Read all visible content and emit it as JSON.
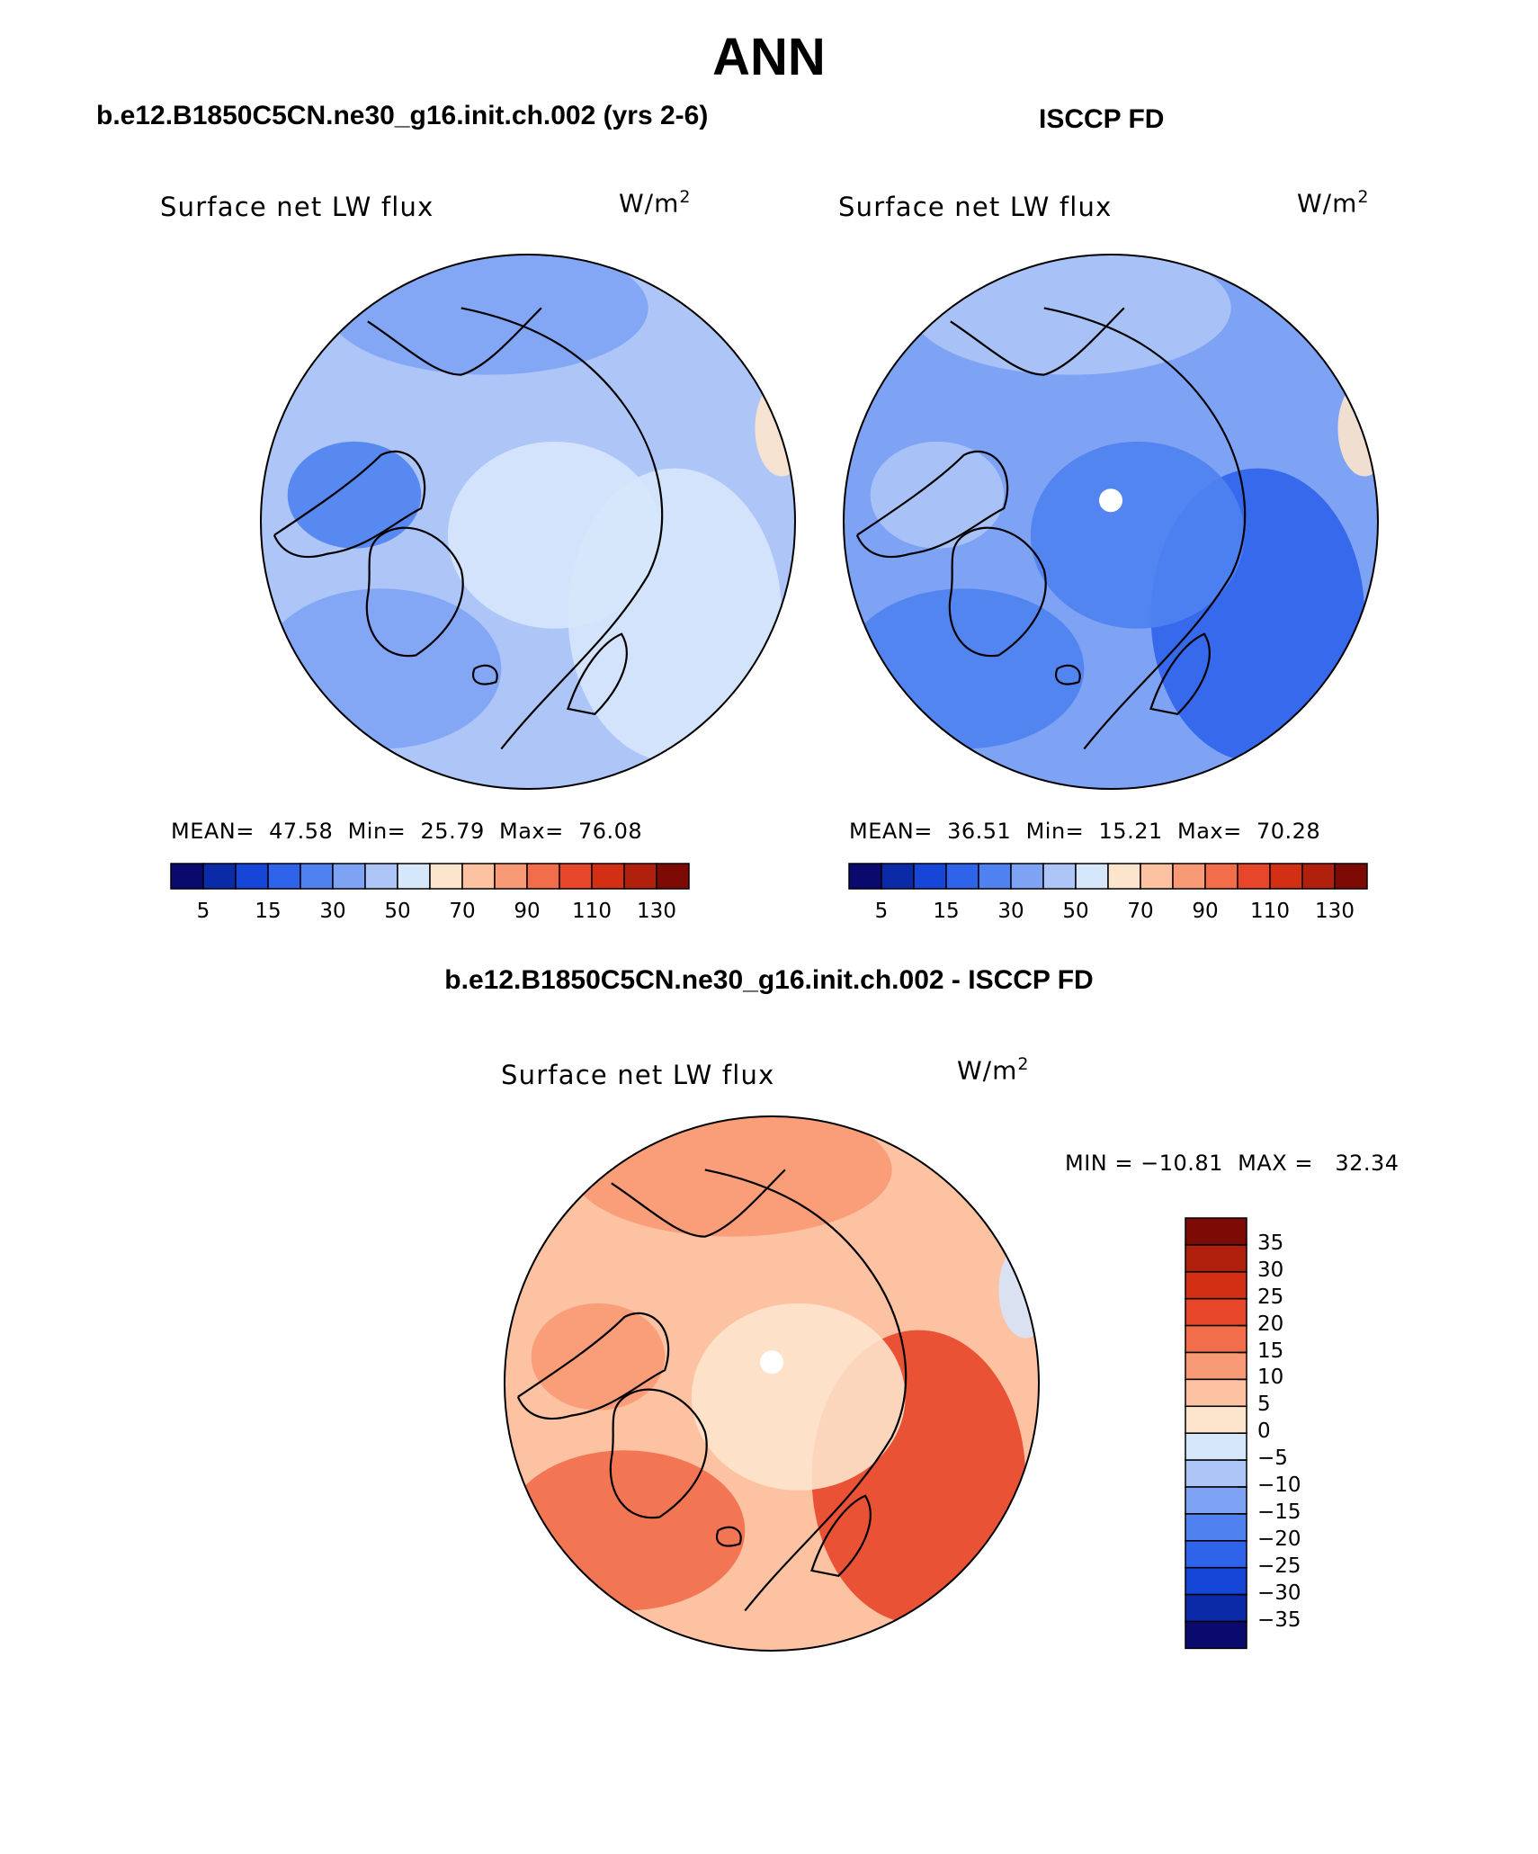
{
  "figure": {
    "title": "ANN",
    "case_title": "b.e12.B1850C5CN.ne30_g16.init.ch.002 (yrs 2-6)",
    "obs_title": "ISCCP FD",
    "diff_title": "b.e12.B1850C5CN.ne30_g16.init.ch.002 - ISCCP FD"
  },
  "panels": {
    "model": {
      "variable": "Surface net LW flux",
      "units": "W/m",
      "units_exp": "2",
      "stats": "MEAN=  47.58  Min=  25.79  Max=  76.08"
    },
    "obs": {
      "variable": "Surface net LW flux",
      "units": "W/m",
      "units_exp": "2",
      "stats": "MEAN=  36.51  Min=  15.21  Max=  70.28"
    },
    "diff": {
      "variable": "Surface net LW flux",
      "units": "W/m",
      "units_exp": "2",
      "stats": "MIN = −10.81  MAX =   32.34"
    }
  },
  "colorbars": {
    "abs": {
      "colors": [
        "#0a0a6e",
        "#0b2aa8",
        "#1646d8",
        "#2f63ea",
        "#4f82f0",
        "#7ea2f4",
        "#adc5f7",
        "#d6e6fb",
        "#fde4cc",
        "#fcc2a2",
        "#f99a76",
        "#f26e4b",
        "#e8462a",
        "#d22f14",
        "#b0200c",
        "#7d0a05"
      ],
      "tick_labels": [
        "5",
        "15",
        "30",
        "50",
        "70",
        "90",
        "110",
        "130"
      ]
    },
    "diff": {
      "colors": [
        "#7d0a05",
        "#b0200c",
        "#d22f14",
        "#e8462a",
        "#f26e4b",
        "#f99a76",
        "#fcc2a2",
        "#fde4cc",
        "#d6e6fb",
        "#adc5f7",
        "#7ea2f4",
        "#4f82f0",
        "#2f63ea",
        "#1646d8",
        "#0b2aa8",
        "#0a0a6e"
      ],
      "tick_labels": [
        "35",
        "30",
        "25",
        "20",
        "15",
        "10",
        "5",
        "0",
        "−5",
        "−10",
        "−15",
        "−20",
        "−25",
        "−30",
        "−35"
      ]
    }
  },
  "map_colors": {
    "model": {
      "base": "#adc5f7",
      "regions": [
        "#7ea2f4",
        "#d6e6fb",
        "#7ea2f4",
        "#d6e6fb",
        "#4f82f0",
        "#fde4cc"
      ]
    },
    "obs": {
      "base": "#7ea2f4",
      "regions": [
        "#4f82f0",
        "#2f63ea",
        "#adc5f7",
        "#4f82f0",
        "#adc5f7",
        "#fde4cc"
      ]
    },
    "diff": {
      "base": "#fcc2a2",
      "regions": [
        "#f26e4b",
        "#e8462a",
        "#f99a76",
        "#fde4cc",
        "#f99a76",
        "#d6e6fb"
      ]
    }
  }
}
